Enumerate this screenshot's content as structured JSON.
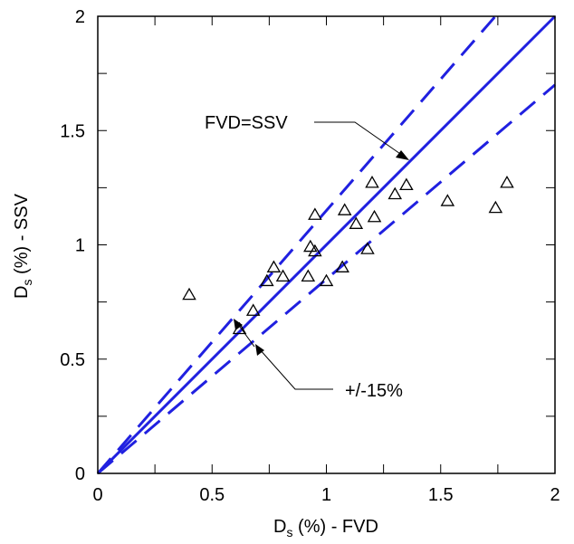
{
  "chart_data": {
    "type": "scatter",
    "xlim": [
      0,
      2
    ],
    "ylim": [
      0,
      2
    ],
    "xticks": [
      "0",
      "0.5",
      "1",
      "1.5",
      "2"
    ],
    "yticks": [
      "0",
      "0.5",
      "1",
      "1.5",
      "2"
    ],
    "xlabel": {
      "base": "D",
      "sub": "s",
      "rest": " (%) - FVD"
    },
    "ylabel": {
      "base": "D",
      "sub": "s",
      "rest": " (%) - SSV"
    },
    "grid": false,
    "marker": "open-triangle",
    "points": [
      {
        "x": 0.4,
        "y": 0.78
      },
      {
        "x": 0.62,
        "y": 0.63
      },
      {
        "x": 0.68,
        "y": 0.71
      },
      {
        "x": 0.74,
        "y": 0.84
      },
      {
        "x": 0.77,
        "y": 0.9
      },
      {
        "x": 0.81,
        "y": 0.86
      },
      {
        "x": 0.92,
        "y": 0.86
      },
      {
        "x": 0.93,
        "y": 0.99
      },
      {
        "x": 0.95,
        "y": 0.97
      },
      {
        "x": 0.95,
        "y": 1.13
      },
      {
        "x": 1.0,
        "y": 0.84
      },
      {
        "x": 1.07,
        "y": 0.9
      },
      {
        "x": 1.08,
        "y": 1.15
      },
      {
        "x": 1.13,
        "y": 1.09
      },
      {
        "x": 1.18,
        "y": 0.98
      },
      {
        "x": 1.2,
        "y": 1.27
      },
      {
        "x": 1.21,
        "y": 1.12
      },
      {
        "x": 1.3,
        "y": 1.22
      },
      {
        "x": 1.35,
        "y": 1.26
      },
      {
        "x": 1.53,
        "y": 1.19
      },
      {
        "x": 1.74,
        "y": 1.16
      },
      {
        "x": 1.79,
        "y": 1.27
      }
    ],
    "lines": [
      {
        "label": "FVD=SSV",
        "slope": 1.0,
        "style": "solid"
      },
      {
        "label": "+/-15%",
        "slope": 1.15,
        "style": "dashed"
      },
      {
        "label": "+/-15%",
        "slope": 0.85,
        "style": "dashed"
      }
    ],
    "annotations": {
      "equality": "FVD=SSV",
      "bounds": "+/-15%"
    },
    "colors": {
      "line": "#2020e0",
      "marker": "#000000",
      "axis": "#000000"
    }
  }
}
